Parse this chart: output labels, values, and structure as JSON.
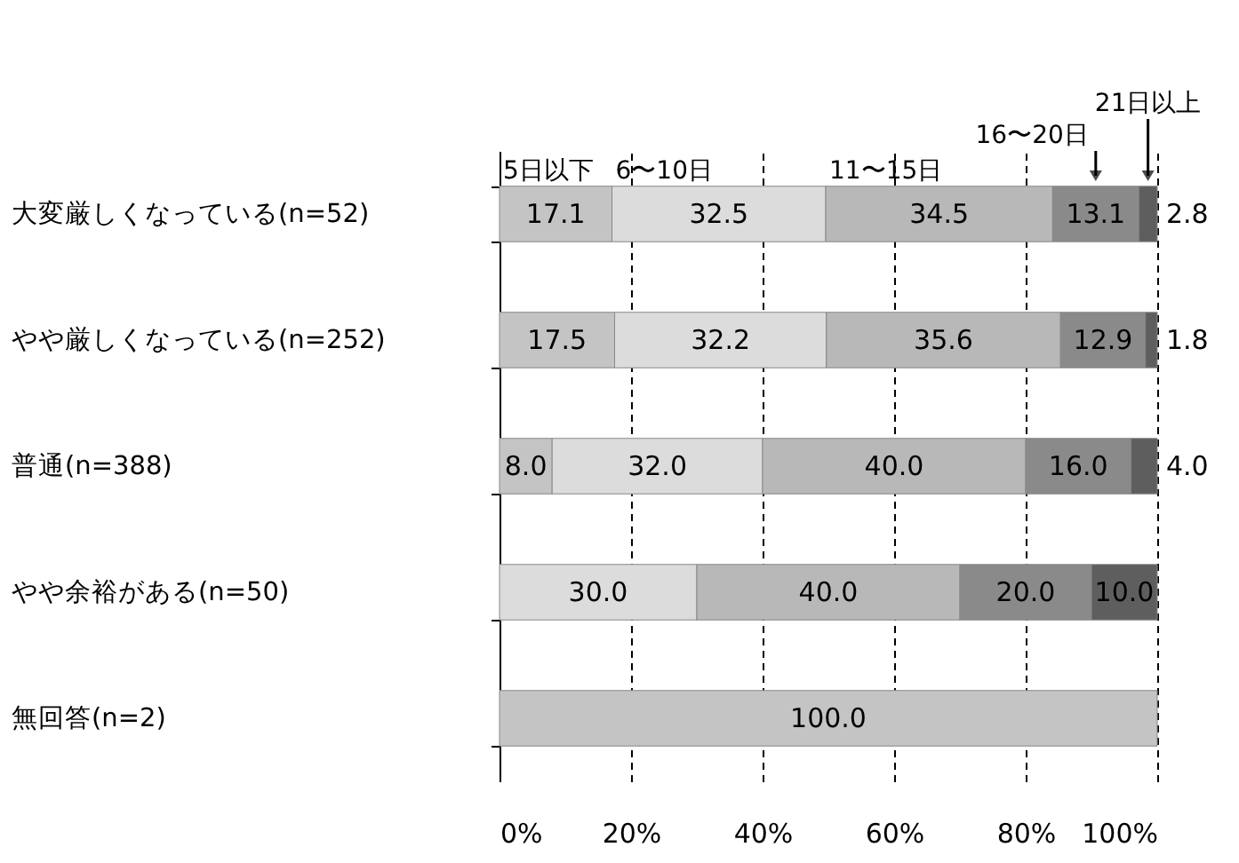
{
  "chart_data": {
    "type": "bar",
    "orientation": "horizontal",
    "stacked": true,
    "grid": "x",
    "line_style": "dashed",
    "legend": "top",
    "categories": [
      "大変厳しくなっている(n=52)",
      "やや厳しくなっている(n=252)",
      "普通(n=388)",
      "やや余裕がある(n=50)",
      "無回答(n=2)"
    ],
    "xlim": [
      0,
      100
    ],
    "xticks": [
      {
        "value": 0,
        "label": "0%"
      },
      {
        "value": 20,
        "label": "20%"
      },
      {
        "value": 40,
        "label": "40%"
      },
      {
        "value": 60,
        "label": "60%"
      },
      {
        "value": 80,
        "label": "80%"
      },
      {
        "value": 100,
        "label": "100%"
      }
    ],
    "series": [
      {
        "name": "5日以下",
        "color": "#c4c4c4",
        "values": [
          17.1,
          17.5,
          8.0,
          null,
          100.0
        ],
        "value_labels": [
          "17.1",
          "17.5",
          "8.0",
          null,
          "100.0"
        ]
      },
      {
        "name": "6〜10日",
        "color": "#dcdcdc",
        "values": [
          32.5,
          32.2,
          32.0,
          30.0,
          null
        ],
        "value_labels": [
          "32.5",
          "32.2",
          "32.0",
          "30.0",
          null
        ]
      },
      {
        "name": "11〜15日",
        "color": "#b8b8b8",
        "values": [
          34.5,
          35.6,
          40.0,
          40.0,
          null
        ],
        "value_labels": [
          "34.5",
          "35.6",
          "40.0",
          "40.0",
          null
        ]
      },
      {
        "name": "16〜20日",
        "color": "#8a8a8a",
        "values": [
          13.1,
          12.9,
          16.0,
          20.0,
          null
        ],
        "value_labels": [
          "13.1",
          "12.9",
          "16.0",
          "20.0",
          null
        ]
      },
      {
        "name": "21日以上",
        "color": "#5e5e5e",
        "values": [
          2.8,
          1.8,
          4.0,
          10.0,
          null
        ],
        "value_labels": [
          "2.8",
          "1.8",
          "4.0",
          "10.0",
          null
        ]
      }
    ]
  }
}
